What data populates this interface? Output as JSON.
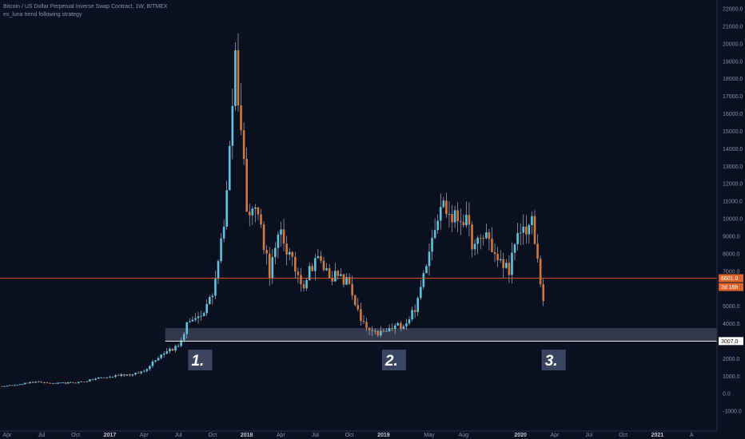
{
  "header": {
    "title": "Bitcoin / US Dollar Perpetual Inverse Swap Contract, 1W, BITMEX",
    "strategy": "ex_luna trend following strategy"
  },
  "colors": {
    "background": "#0b1021",
    "up": "#5ec3e0",
    "down": "#d27a3c",
    "price_line": "#e0642a",
    "support_line": "#ffffff",
    "support_zone": "#3a4152",
    "annotation_box": "#3a4660"
  },
  "chart_data": {
    "type": "candlestick",
    "ylim": [
      -1500,
      22500
    ],
    "y_ticks": [
      -1000,
      0,
      1000,
      2000,
      3000,
      4000,
      5000,
      6000,
      7000,
      8000,
      9000,
      10000,
      11000,
      12000,
      13000,
      14000,
      15000,
      16000,
      17000,
      18000,
      19000,
      20000,
      21000,
      22000
    ],
    "y_tick_labels": [
      "-1000.0",
      "0.0",
      "1000.0",
      "2000.0",
      "3000.0",
      "4000.0",
      "5000.0",
      "6000.0",
      "7000.0",
      "8000.0",
      "9000.0",
      "10000.0",
      "11000.0",
      "12000.0",
      "13000.0",
      "14000.0",
      "15000.0",
      "16000.0",
      "17000.0",
      "18000.0",
      "19000.0",
      "20000.0",
      "21000.0",
      "22000.0"
    ],
    "x_ticks": [
      {
        "label": "Apr",
        "date": "2016-04",
        "year": false
      },
      {
        "label": "Jul",
        "date": "2016-07",
        "year": false
      },
      {
        "label": "Oct",
        "date": "2016-10",
        "year": false
      },
      {
        "label": "2017",
        "date": "2017-01",
        "year": true
      },
      {
        "label": "Apr",
        "date": "2017-04",
        "year": false
      },
      {
        "label": "Jul",
        "date": "2017-07",
        "year": false
      },
      {
        "label": "Oct",
        "date": "2017-10",
        "year": false
      },
      {
        "label": "2018",
        "date": "2018-01",
        "year": true
      },
      {
        "label": "Apr",
        "date": "2018-04",
        "year": false
      },
      {
        "label": "Jul",
        "date": "2018-07",
        "year": false
      },
      {
        "label": "Oct",
        "date": "2018-10",
        "year": false
      },
      {
        "label": "2019",
        "date": "2019-01",
        "year": true
      },
      {
        "label": "May",
        "date": "2019-05",
        "year": false
      },
      {
        "label": "Aug",
        "date": "2019-08",
        "year": false
      },
      {
        "label": "2020",
        "date": "2020-01",
        "year": true
      },
      {
        "label": "Apr",
        "date": "2020-04",
        "year": false
      },
      {
        "label": "Jul",
        "date": "2020-07",
        "year": false
      },
      {
        "label": "Oct",
        "date": "2020-10",
        "year": false
      },
      {
        "label": "2021",
        "date": "2021-01",
        "year": true
      },
      {
        "label": "A",
        "date": "2021-04",
        "year": false
      }
    ],
    "close_path": [
      [
        "2016-01",
        430
      ],
      [
        "2016-04",
        440
      ],
      [
        "2016-06",
        640
      ],
      [
        "2016-07",
        650
      ],
      [
        "2016-08",
        580
      ],
      [
        "2016-10",
        640
      ],
      [
        "2016-11",
        730
      ],
      [
        "2016-12",
        900
      ],
      [
        "2017-01",
        950
      ],
      [
        "2017-02",
        1100
      ],
      [
        "2017-03",
        1080
      ],
      [
        "2017-04",
        1300
      ],
      [
        "2017-05",
        2000
      ],
      [
        "2017-06",
        2500
      ],
      [
        "2017-07",
        2700
      ],
      [
        "2017-08",
        4300
      ],
      [
        "2017-09",
        4200
      ],
      [
        "2017-10",
        5800
      ],
      [
        "2017-11",
        9500
      ],
      [
        "2017-12",
        19300
      ],
      [
        "2018-01",
        11000
      ],
      [
        "2018-02",
        10300
      ],
      [
        "2018-03",
        7000
      ],
      [
        "2018-04",
        9200
      ],
      [
        "2018-05",
        7400
      ],
      [
        "2018-06",
        6300
      ],
      [
        "2018-07",
        7800
      ],
      [
        "2018-08",
        7000
      ],
      [
        "2018-09",
        6600
      ],
      [
        "2018-10",
        6300
      ],
      [
        "2018-11",
        4100
      ],
      [
        "2018-12",
        3400
      ],
      [
        "2019-01",
        3500
      ],
      [
        "2019-02",
        3800
      ],
      [
        "2019-03",
        4100
      ],
      [
        "2019-04",
        5200
      ],
      [
        "2019-05",
        8500
      ],
      [
        "2019-06",
        11000
      ],
      [
        "2019-07",
        10000
      ],
      [
        "2019-08",
        10100
      ],
      [
        "2019-09",
        8300
      ],
      [
        "2019-10",
        9200
      ],
      [
        "2019-11",
        7500
      ],
      [
        "2019-12",
        7200
      ],
      [
        "2020-01",
        9300
      ],
      [
        "2020-02",
        9700
      ],
      [
        "2020-03",
        5300
      ]
    ],
    "last_price": 6601.0,
    "last_price_label": "6601.0",
    "countdown": "2d 16h",
    "support_level": 3007.0,
    "support_label": "3007.0",
    "support_zone": [
      3050,
      3750
    ],
    "annotations": [
      {
        "label": "1.",
        "date": "2017-08"
      },
      {
        "label": "2.",
        "date": "2019-01"
      },
      {
        "label": "3.",
        "date": "2020-03"
      }
    ]
  }
}
